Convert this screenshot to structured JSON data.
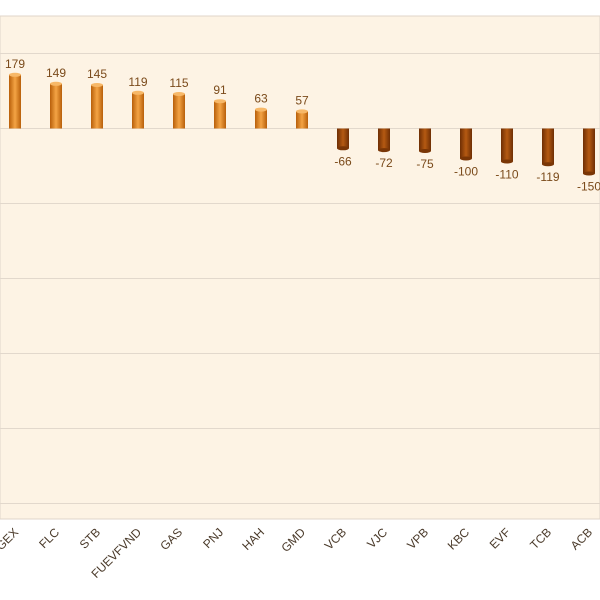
{
  "chart_data": {
    "type": "bar",
    "categories": [
      "GEX",
      "FLC",
      "STB",
      "FUEVFVND",
      "GAS",
      "PNJ",
      "HAH",
      "GMD",
      "VCB",
      "VJC",
      "VPB",
      "KBC",
      "EVF",
      "TCB",
      "ACB"
    ],
    "values": [
      179,
      149,
      145,
      119,
      115,
      91,
      63,
      57,
      -66,
      -72,
      -75,
      -100,
      -110,
      -119,
      -150
    ],
    "data_labels": [
      "179",
      "149",
      "145",
      "119",
      "115",
      "91",
      "63",
      "57",
      "-66",
      "-72",
      "-75",
      "-100",
      "-110",
      "-119",
      "-150"
    ],
    "category_labels_visible": [
      "GEX",
      "FLC",
      "STB",
      "FUEVFVND",
      "GAS",
      "PNJ",
      "HAH",
      "GMD",
      "VCB",
      "VJC",
      "VPB",
      "KBC",
      "EVF",
      "TCB",
      "ACB"
    ],
    "title": "",
    "xlabel": "",
    "ylabel": "",
    "ylim": [
      -1500,
      350
    ],
    "grid": true,
    "legend": "none",
    "colors": {
      "plot_background": "#fdf3e4",
      "gridline": "#e2d8cc",
      "positive_bar": "#e8891c",
      "negative_bar": "#9a4408",
      "value_label": "#7a4a1a",
      "category_label": "#4a3a2a"
    }
  }
}
